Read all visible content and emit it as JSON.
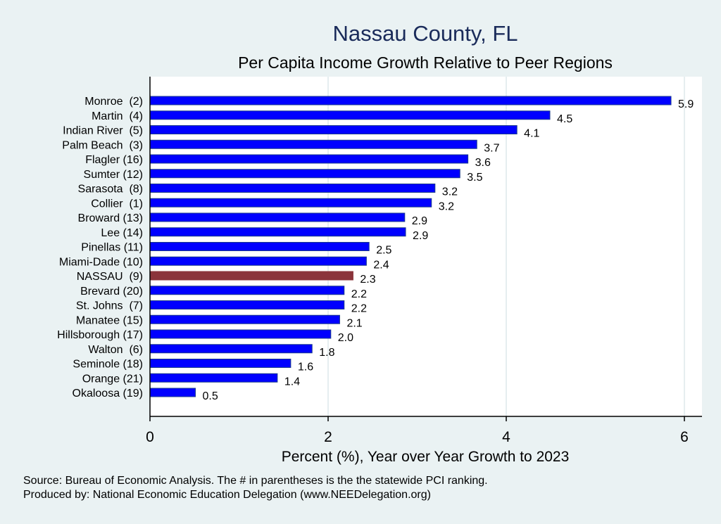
{
  "chart_data": {
    "type": "bar",
    "orientation": "horizontal",
    "title": "Nassau County, FL",
    "subtitle": "Per Capita Income Growth Relative to Peer Regions",
    "xlabel": "Percent (%), Year over Year Growth to 2023",
    "ylabel": "",
    "xlim": [
      0,
      6.2
    ],
    "xticks": [
      0,
      2,
      4,
      6
    ],
    "grid": "vertical",
    "categories": [
      "Monroe  (2)",
      "Martin  (4)",
      "Indian River  (5)",
      "Palm Beach  (3)",
      "Flagler (16)",
      "Sumter (12)",
      "Sarasota  (8)",
      "Collier  (1)",
      "Broward (13)",
      "Lee (14)",
      "Pinellas (11)",
      "Miami-Dade (10)",
      "NASSAU  (9)",
      "Brevard (20)",
      "St. Johns  (7)",
      "Manatee (15)",
      "Hillsborough (17)",
      "Walton  (6)",
      "Seminole (18)",
      "Orange (21)",
      "Okaloosa (19)"
    ],
    "values": [
      5.85,
      4.49,
      4.12,
      3.67,
      3.57,
      3.48,
      3.2,
      3.16,
      2.86,
      2.87,
      2.46,
      2.43,
      2.28,
      2.18,
      2.18,
      2.13,
      2.03,
      1.82,
      1.58,
      1.43,
      0.51
    ],
    "value_labels": [
      "5.9",
      "4.5",
      "4.1",
      "3.7",
      "3.6",
      "3.5",
      "3.2",
      "3.2",
      "2.9",
      "2.9",
      "2.5",
      "2.4",
      "2.3",
      "2.2",
      "2.2",
      "2.1",
      "2.0",
      "1.8",
      "1.6",
      "1.4",
      "0.5"
    ],
    "highlight": "NASSAU  (9)",
    "colors": {
      "bar": "#0000ff",
      "bar_border": "#1c3c8c",
      "highlight": "#8b343b",
      "background": "#eaf2f3",
      "plot": "#ffffff",
      "grid": "#e6eef0",
      "title": "#1a2b5a"
    }
  },
  "footer": {
    "source": "Source: Bureau of Economic Analysis. The # in parentheses is the the statewide PCI ranking.",
    "produced": "Produced by: National Economic Education Delegation (www.NEEDelegation.org)"
  }
}
